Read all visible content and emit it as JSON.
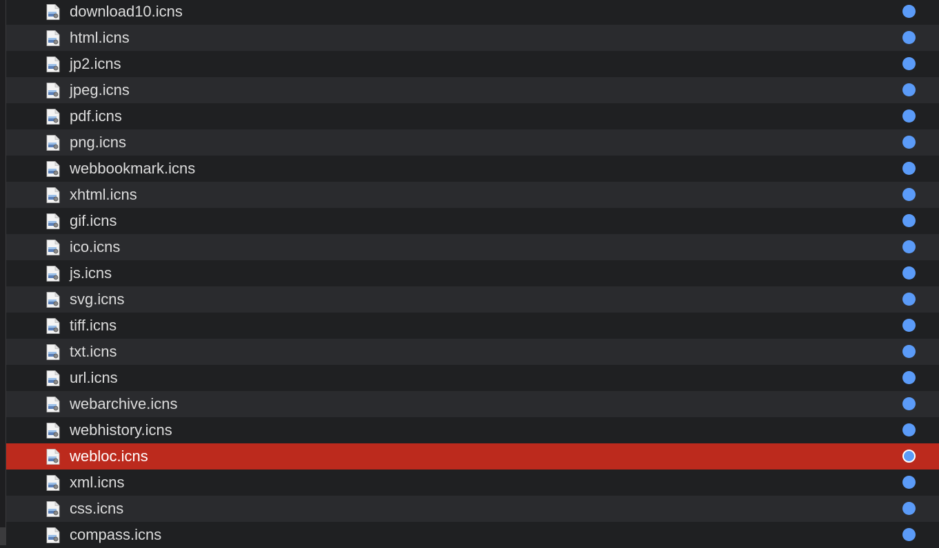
{
  "colors": {
    "tag_dot": "#5b9bf8",
    "selection": "#bc2a1d"
  },
  "files": [
    {
      "name": "download10.icns",
      "icon": "document-icon"
    },
    {
      "name": "html.icns",
      "icon": "document-icon"
    },
    {
      "name": "jp2.icns",
      "icon": "document-icon"
    },
    {
      "name": "jpeg.icns",
      "icon": "document-icon"
    },
    {
      "name": "pdf.icns",
      "icon": "document-icon"
    },
    {
      "name": "png.icns",
      "icon": "document-icon"
    },
    {
      "name": "webbookmark.icns",
      "icon": "document-icon"
    },
    {
      "name": "xhtml.icns",
      "icon": "document-icon"
    },
    {
      "name": "gif.icns",
      "icon": "document-icon"
    },
    {
      "name": "ico.icns",
      "icon": "document-icon"
    },
    {
      "name": "js.icns",
      "icon": "document-icon"
    },
    {
      "name": "svg.icns",
      "icon": "document-icon"
    },
    {
      "name": "tiff.icns",
      "icon": "document-icon"
    },
    {
      "name": "txt.icns",
      "icon": "document-icon"
    },
    {
      "name": "url.icns",
      "icon": "document-icon"
    },
    {
      "name": "webarchive.icns",
      "icon": "document-icon"
    },
    {
      "name": "webhistory.icns",
      "icon": "document-icon"
    },
    {
      "name": "webloc.icns",
      "icon": "document-icon",
      "selected": true
    },
    {
      "name": "xml.icns",
      "icon": "document-icon"
    },
    {
      "name": "css.icns",
      "icon": "document-icon"
    },
    {
      "name": "compass.icns",
      "icon": "document-icon"
    }
  ]
}
